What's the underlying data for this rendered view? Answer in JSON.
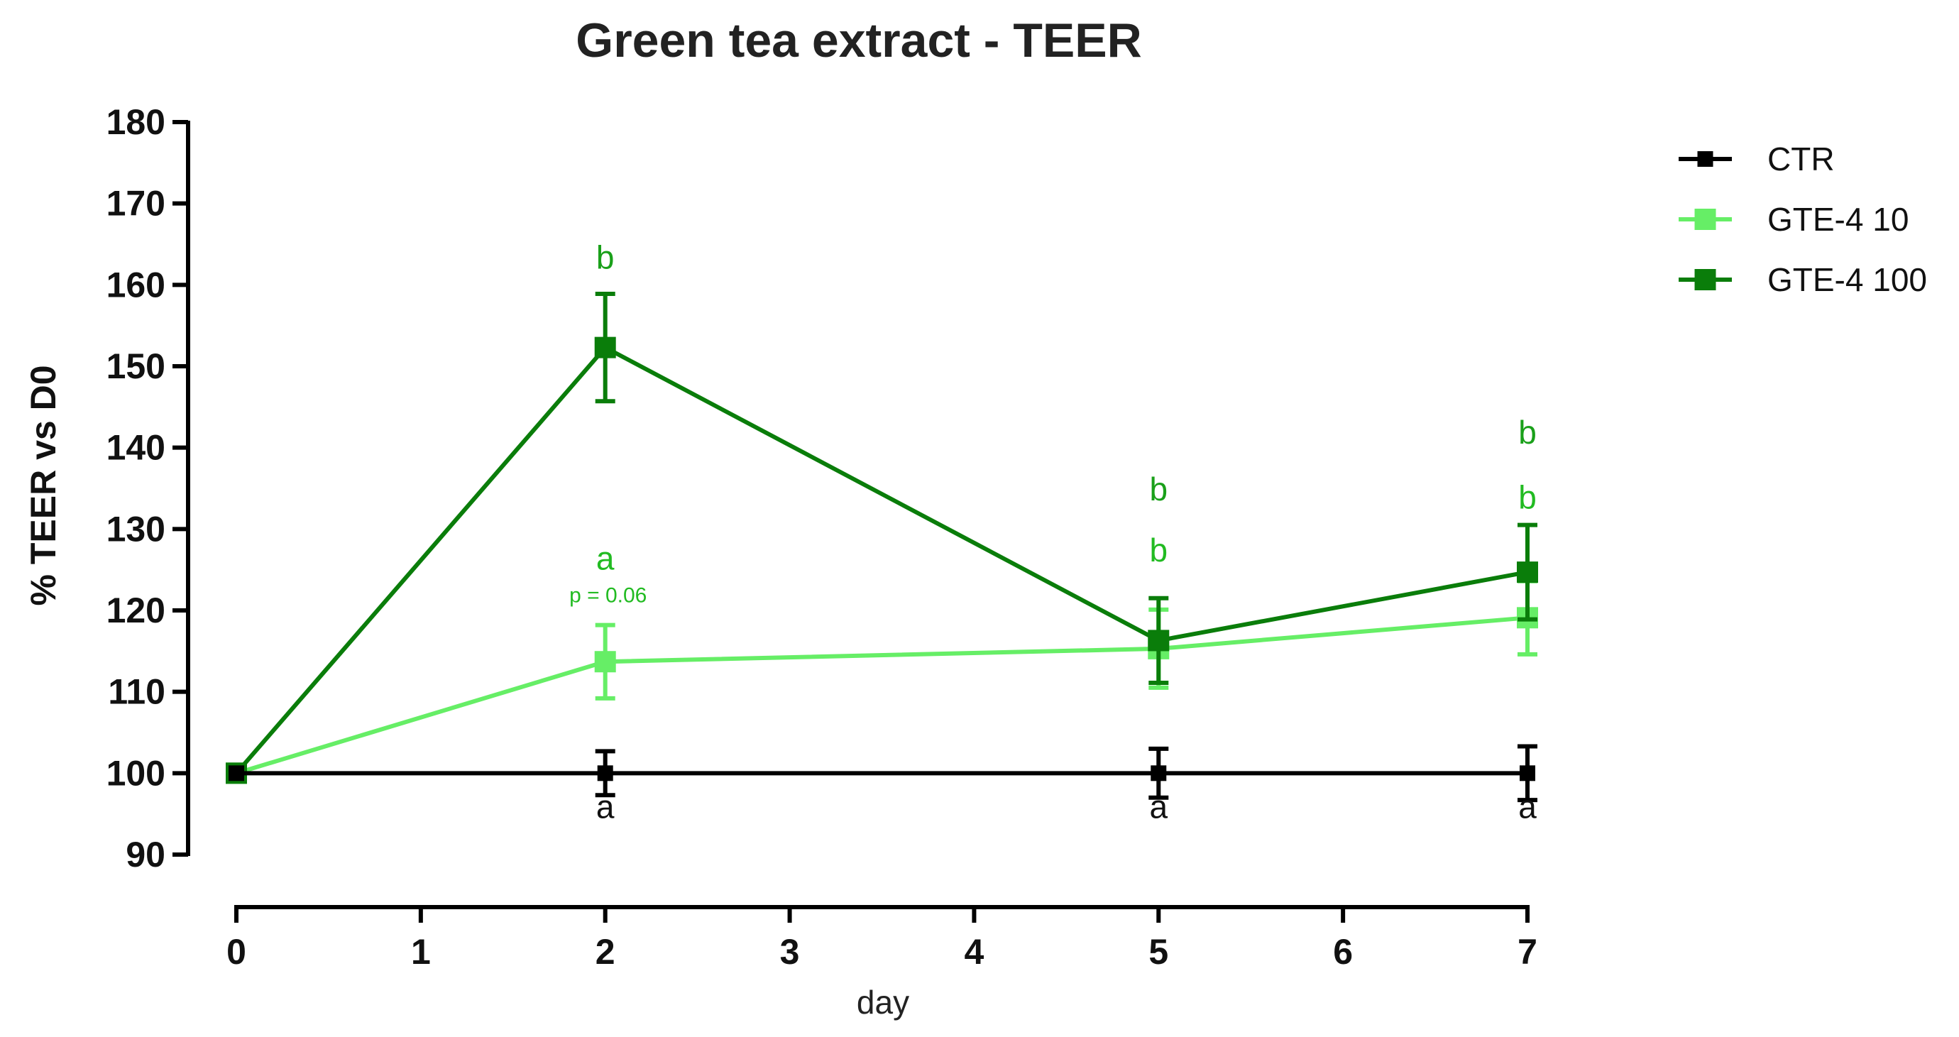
{
  "chart_data": {
    "type": "line",
    "title": "Green tea extract - TEER",
    "xlabel": "day",
    "ylabel": "% TEER vs D0",
    "xlim": [
      0,
      7
    ],
    "ylim": [
      90,
      180
    ],
    "xticks": [
      "0",
      "1",
      "2",
      "3",
      "4",
      "5",
      "6",
      "7"
    ],
    "yticks": [
      "90",
      "100",
      "110",
      "120",
      "130",
      "140",
      "150",
      "160",
      "170",
      "180"
    ],
    "grid": false,
    "legend_position": "top-right",
    "series": [
      {
        "name": "CTR",
        "color": "#000000",
        "x": [
          0,
          2,
          5,
          7
        ],
        "y": [
          100,
          100,
          100,
          100
        ],
        "err": [
          0,
          2.7,
          3.0,
          3.3
        ]
      },
      {
        "name": "GTE-4 10",
        "color": "#66ee66",
        "x": [
          0,
          2,
          5,
          7
        ],
        "y": [
          100,
          113.7,
          115.3,
          119.1
        ],
        "err": [
          0,
          4.5,
          4.8,
          4.5
        ]
      },
      {
        "name": "GTE-4 100",
        "color": "#0a7d0a",
        "x": [
          0,
          2,
          5,
          7
        ],
        "y": [
          100,
          152.3,
          116.3,
          124.7
        ],
        "err": [
          0,
          6.6,
          5.2,
          5.8
        ]
      }
    ],
    "annotations": [
      {
        "text": "b",
        "x": 2,
        "y": 162,
        "color": "#1aa01a",
        "style": "normal"
      },
      {
        "text": "a",
        "x": 2,
        "y": 125,
        "color": "#22bb22",
        "style": "normal"
      },
      {
        "text": "p = 0.06",
        "x": 2,
        "y": 121,
        "color": "#22bb22",
        "style": "small"
      },
      {
        "text": "a",
        "x": 2,
        "y": 94.5,
        "color": "#111111",
        "style": "normal"
      },
      {
        "text": "b",
        "x": 5,
        "y": 133.5,
        "color": "#1aa01a",
        "style": "normal"
      },
      {
        "text": "b",
        "x": 5,
        "y": 126,
        "color": "#22bb22",
        "style": "normal"
      },
      {
        "text": "a",
        "x": 5,
        "y": 94.5,
        "color": "#111111",
        "style": "normal"
      },
      {
        "text": "b",
        "x": 7,
        "y": 140.5,
        "color": "#1aa01a",
        "style": "normal"
      },
      {
        "text": "b",
        "x": 7,
        "y": 132.5,
        "color": "#22bb22",
        "style": "normal"
      },
      {
        "text": "a",
        "x": 7,
        "y": 94.5,
        "color": "#111111",
        "style": "normal"
      }
    ]
  }
}
